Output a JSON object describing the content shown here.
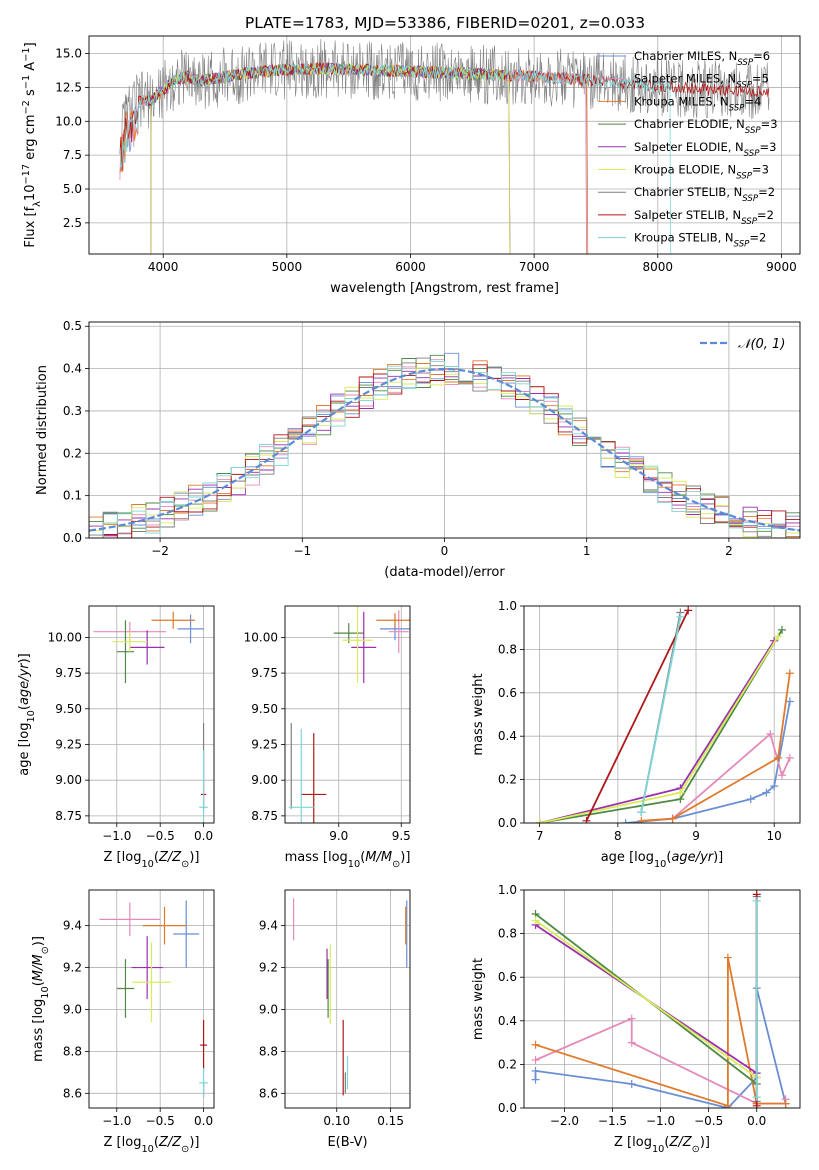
{
  "title": "PLATE=1783, MJD=53386, FIBERID=0201, z=0.033",
  "colors": [
    "#6a8fd4",
    "#e48ab8",
    "#e07a2c",
    "#4f8a45",
    "#9b2fae",
    "#d9eb5a",
    "#7f7f7f",
    "#b01818",
    "#7fd6d6"
  ],
  "chart_data": [
    {
      "id": "spectrum",
      "type": "line",
      "title": "PLATE=1783, MJD=53386, FIBERID=0201, z=0.033",
      "xlabel": "wavelength [Angstrom, rest frame]",
      "ylabel": "Flux [f_λ 10^-17 erg cm^-2 s^-1 A^-1]",
      "xlim": [
        3400,
        9150
      ],
      "ylim": [
        0.2,
        16.3
      ],
      "xticks": [
        4000,
        5000,
        6000,
        7000,
        8000,
        9000
      ],
      "yticks": [
        2.5,
        5.0,
        7.5,
        10.0,
        12.5,
        15.0
      ],
      "xtick_labels": [
        "4000",
        "5000",
        "6000",
        "7000",
        "8000",
        "9000"
      ],
      "ytick_labels": [
        "2.5",
        "5.0",
        "7.5",
        "10.0",
        "12.5",
        "15.0"
      ],
      "legend_position": "top-right",
      "legend": [
        {
          "model": "Chabrier MILES",
          "n_ssp": "6"
        },
        {
          "model": "Salpeter MILES",
          "n_ssp": "5"
        },
        {
          "model": "Kroupa MILES",
          "n_ssp": "4"
        },
        {
          "model": "Chabrier ELODIE",
          "n_ssp": "3"
        },
        {
          "model": "Salpeter ELODIE",
          "n_ssp": "3"
        },
        {
          "model": "Kroupa ELODIE",
          "n_ssp": "3"
        },
        {
          "model": "Chabrier STELIB",
          "n_ssp": "2"
        },
        {
          "model": "Salpeter STELIB",
          "n_ssp": "2"
        },
        {
          "model": "Kroupa STELIB",
          "n_ssp": "2"
        }
      ],
      "continuum": {
        "x": [
          3650,
          3700,
          3800,
          3900,
          4000,
          4100,
          4200,
          4300,
          4500,
          4700,
          5000,
          5300,
          5600,
          6000,
          6500,
          7000,
          7500,
          8000,
          8500,
          8900
        ],
        "y": [
          8.5,
          10.5,
          11.5,
          11.5,
          12.3,
          13.1,
          13.3,
          13.0,
          13.3,
          13.6,
          13.8,
          13.9,
          13.8,
          13.7,
          13.5,
          13.3,
          13.0,
          12.6,
          12.3,
          12.2
        ]
      }
    },
    {
      "id": "residuals",
      "type": "histogram",
      "xlabel": "(data-model)/error",
      "ylabel": "Normed distribution",
      "xlim": [
        -2.5,
        2.5
      ],
      "ylim": [
        0,
        0.51
      ],
      "xticks": [
        -2,
        -1,
        0,
        1,
        2
      ],
      "xtick_labels": [
        "−2",
        "−1",
        "0",
        "1",
        "2"
      ],
      "yticks": [
        0.0,
        0.1,
        0.2,
        0.3,
        0.4,
        0.5
      ],
      "ytick_labels": [
        "0.0",
        "0.1",
        "0.2",
        "0.3",
        "0.4",
        "0.5"
      ],
      "bin_width": 0.1,
      "reference_label": "𝒩(0, 1)",
      "legend_position": "top-right"
    },
    {
      "id": "age-vs-z",
      "type": "scatter",
      "xlabel": "Z [log10(Z/Z⊙)]",
      "ylabel": "age  [log10(age/yr)]",
      "xlim": [
        -1.32,
        0.12
      ],
      "ylim": [
        8.7,
        10.22
      ],
      "xticks": [
        -1.0,
        -0.5,
        0.0
      ],
      "xtick_labels": [
        "−1.0",
        "−0.5",
        "0.0"
      ],
      "yticks": [
        8.75,
        9.0,
        9.25,
        9.5,
        9.75,
        10.0
      ],
      "ytick_labels": [
        "8.75",
        "9.00",
        "9.25",
        "9.50",
        "9.75",
        "10.00"
      ],
      "points": [
        {
          "series": 0,
          "x": -0.15,
          "y": 10.06,
          "xerr": 0.15,
          "yerr": 0.1
        },
        {
          "series": 1,
          "x": -0.85,
          "y": 10.04,
          "xerr": 0.42,
          "yerr": 0.07
        },
        {
          "series": 2,
          "x": -0.35,
          "y": 10.12,
          "xerr": 0.25,
          "yerr": 0.06
        },
        {
          "series": 3,
          "x": -0.9,
          "y": 9.9,
          "xerr": 0.1,
          "yerr": 0.22
        },
        {
          "series": 4,
          "x": -0.65,
          "y": 9.93,
          "xerr": 0.2,
          "yerr": 0.12
        },
        {
          "series": 5,
          "x": -0.85,
          "y": 9.97,
          "xerr": 0.2,
          "yerr": 0.07
        },
        {
          "series": 6,
          "x": 0.0,
          "y": 9.2,
          "xerr": 0.0,
          "yerr": 0.2
        },
        {
          "series": 7,
          "x": 0.0,
          "y": 8.9,
          "xerr": 0.03,
          "yerr": 0.1
        },
        {
          "series": 8,
          "x": 0.0,
          "y": 8.81,
          "xerr": 0.05,
          "yerr": 0.4
        }
      ]
    },
    {
      "id": "age-vs-mass",
      "type": "scatter",
      "xlabel": "mass [log10(M/M⊙)]",
      "xlim": [
        8.57,
        9.57
      ],
      "ylim": [
        8.7,
        10.22
      ],
      "xticks": [
        9.0,
        9.5
      ],
      "xtick_labels": [
        "9.0",
        "9.5"
      ],
      "yticks": [
        8.75,
        9.0,
        9.25,
        9.5,
        9.75,
        10.0
      ],
      "ytick_labels": [
        "8.75",
        "9.00",
        "9.25",
        "9.50",
        "9.75",
        "10.00"
      ],
      "points": [
        {
          "series": 0,
          "x": 9.45,
          "y": 10.06,
          "xerr": 0.12,
          "yerr": 0.08
        },
        {
          "series": 1,
          "x": 9.48,
          "y": 10.04,
          "xerr": 0.08,
          "yerr": 0.15
        },
        {
          "series": 2,
          "x": 9.45,
          "y": 10.12,
          "xerr": 0.15,
          "yerr": 0.05
        },
        {
          "series": 3,
          "x": 9.08,
          "y": 10.03,
          "xerr": 0.12,
          "yerr": 0.07
        },
        {
          "series": 4,
          "x": 9.2,
          "y": 9.93,
          "xerr": 0.1,
          "yerr": 0.25
        },
        {
          "series": 5,
          "x": 9.15,
          "y": 9.98,
          "xerr": 0.12,
          "yerr": 0.3
        },
        {
          "series": 6,
          "x": 8.62,
          "y": 9.1,
          "xerr": 0.0,
          "yerr": 0.3
        },
        {
          "series": 7,
          "x": 8.8,
          "y": 8.9,
          "xerr": 0.1,
          "yerr": 0.43
        },
        {
          "series": 8,
          "x": 8.7,
          "y": 8.81,
          "xerr": 0.1,
          "yerr": 0.55
        }
      ]
    },
    {
      "id": "weight-vs-age",
      "type": "line",
      "xlabel": "age  [log10(age/yr)]",
      "ylabel": "mass weight",
      "xlim": [
        6.8,
        10.33
      ],
      "ylim": [
        0,
        1.0
      ],
      "xticks": [
        7,
        8,
        9,
        10
      ],
      "xtick_labels": [
        "7",
        "8",
        "9",
        "10"
      ],
      "yticks": [
        0.0,
        0.2,
        0.4,
        0.6,
        0.8,
        1.0
      ],
      "ytick_labels": [
        "0.0",
        "0.2",
        "0.4",
        "0.6",
        "0.8",
        "1.0"
      ],
      "series": [
        {
          "series": 0,
          "x": [
            8.1,
            8.7,
            9.7,
            9.9,
            10.0,
            10.2
          ],
          "y": [
            0.0,
            0.02,
            0.11,
            0.14,
            0.17,
            0.56
          ]
        },
        {
          "series": 1,
          "x": [
            8.7,
            9.95,
            10.1,
            10.2
          ],
          "y": [
            0.02,
            0.41,
            0.22,
            0.3
          ]
        },
        {
          "series": 2,
          "x": [
            8.3,
            8.7,
            10.05,
            10.2
          ],
          "y": [
            0.01,
            0.02,
            0.3,
            0.69
          ]
        },
        {
          "series": 3,
          "x": [
            7.0,
            8.8,
            10.1
          ],
          "y": [
            0.0,
            0.11,
            0.89
          ]
        },
        {
          "series": 4,
          "x": [
            7.0,
            8.8,
            10.0
          ],
          "y": [
            0.0,
            0.16,
            0.84
          ]
        },
        {
          "series": 5,
          "x": [
            7.0,
            8.8,
            10.05
          ],
          "y": [
            0.0,
            0.14,
            0.86
          ]
        },
        {
          "series": 6,
          "x": [
            8.3,
            8.8
          ],
          "y": [
            0.05,
            0.97
          ]
        },
        {
          "series": 7,
          "x": [
            7.6,
            8.9
          ],
          "y": [
            0.01,
            0.98
          ]
        },
        {
          "series": 8,
          "x": [
            8.3,
            8.8
          ],
          "y": [
            0.05,
            0.95
          ]
        }
      ]
    },
    {
      "id": "mass-vs-z",
      "type": "scatter",
      "xlabel": "Z [log10(Z/Z⊙)]",
      "ylabel": "mass [log10(M/M⊙)]",
      "xlim": [
        -1.32,
        0.12
      ],
      "ylim": [
        8.53,
        9.57
      ],
      "xticks": [
        -1.0,
        -0.5,
        0.0
      ],
      "xtick_labels": [
        "−1.0",
        "−0.5",
        "0.0"
      ],
      "yticks": [
        8.6,
        8.8,
        9.0,
        9.2,
        9.4
      ],
      "ytick_labels": [
        "8.6",
        "8.8",
        "9.0",
        "9.2",
        "9.4"
      ],
      "points": [
        {
          "series": 0,
          "x": -0.2,
          "y": 9.36,
          "xerr": 0.15,
          "yerr": 0.16
        },
        {
          "series": 1,
          "x": -0.85,
          "y": 9.43,
          "xerr": 0.35,
          "yerr": 0.08
        },
        {
          "series": 2,
          "x": -0.45,
          "y": 9.4,
          "xerr": 0.25,
          "yerr": 0.09
        },
        {
          "series": 3,
          "x": -0.9,
          "y": 9.1,
          "xerr": 0.1,
          "yerr": 0.14
        },
        {
          "series": 4,
          "x": -0.65,
          "y": 9.2,
          "xerr": 0.18,
          "yerr": 0.15
        },
        {
          "series": 5,
          "x": -0.6,
          "y": 9.13,
          "xerr": 0.22,
          "yerr": 0.19
        },
        {
          "series": 6,
          "x": 0.0,
          "y": 8.62,
          "xerr": 0.0,
          "yerr": 0.04
        },
        {
          "series": 7,
          "x": 0.0,
          "y": 8.83,
          "xerr": 0.04,
          "yerr": 0.12
        },
        {
          "series": 8,
          "x": 0.0,
          "y": 8.65,
          "xerr": 0.05,
          "yerr": 0.07
        }
      ]
    },
    {
      "id": "mass-vs-ebv",
      "type": "scatter",
      "xlabel": "E(B-V)",
      "xlim": [
        0.052,
        0.168
      ],
      "ylim": [
        8.53,
        9.57
      ],
      "xticks": [
        0.1,
        0.15
      ],
      "xtick_labels": [
        "0.10",
        "0.15"
      ],
      "yticks": [
        8.6,
        8.8,
        9.0,
        9.2,
        9.4
      ],
      "ytick_labels": [
        "8.6",
        "8.8",
        "9.0",
        "9.2",
        "9.4"
      ],
      "points": [
        {
          "series": 0,
          "x": 0.165,
          "y": 9.36,
          "xerr": 0,
          "yerr": 0.16
        },
        {
          "series": 1,
          "x": 0.06,
          "y": 9.43,
          "xerr": 0,
          "yerr": 0.1
        },
        {
          "series": 2,
          "x": 0.164,
          "y": 9.4,
          "xerr": 0,
          "yerr": 0.09
        },
        {
          "series": 3,
          "x": 0.092,
          "y": 9.1,
          "xerr": 0,
          "yerr": 0.14
        },
        {
          "series": 4,
          "x": 0.091,
          "y": 9.17,
          "xerr": 0,
          "yerr": 0.12
        },
        {
          "series": 5,
          "x": 0.094,
          "y": 9.12,
          "xerr": 0,
          "yerr": 0.19
        },
        {
          "series": 6,
          "x": 0.108,
          "y": 8.65,
          "xerr": 0,
          "yerr": 0.05
        },
        {
          "series": 7,
          "x": 0.106,
          "y": 8.77,
          "xerr": 0,
          "yerr": 0.18
        },
        {
          "series": 8,
          "x": 0.11,
          "y": 8.7,
          "xerr": 0,
          "yerr": 0.08
        }
      ]
    },
    {
      "id": "weight-vs-z",
      "type": "line",
      "xlabel": "Z [log10(Z/Z⊙)]",
      "ylabel": "mass weight",
      "xlim": [
        -2.42,
        0.45
      ],
      "ylim": [
        0,
        1.0
      ],
      "xticks": [
        -2.0,
        -1.5,
        -1.0,
        -0.5,
        0.0
      ],
      "xtick_labels": [
        "−2.0",
        "−1.5",
        "−1.0",
        "−0.5",
        "0.0"
      ],
      "yticks": [
        0.0,
        0.2,
        0.4,
        0.6,
        0.8,
        1.0
      ],
      "ytick_labels": [
        "0.0",
        "0.2",
        "0.4",
        "0.6",
        "0.8",
        "1.0"
      ],
      "series": [
        {
          "series": 0,
          "x": [
            -2.3,
            -2.3,
            -1.3,
            -0.3,
            0.0,
            0.0,
            0.3
          ],
          "y": [
            0.13,
            0.17,
            0.11,
            0.0,
            0.14,
            0.55,
            0.02
          ]
        },
        {
          "series": 1,
          "x": [
            -2.3,
            -1.3,
            -1.3,
            0.0,
            0.3,
            0.3
          ],
          "y": [
            0.22,
            0.41,
            0.3,
            0.02,
            0.02,
            0.04
          ]
        },
        {
          "series": 2,
          "x": [
            -2.3,
            -0.3,
            -0.3,
            0.0,
            0.3
          ],
          "y": [
            0.29,
            0.01,
            0.69,
            0.02,
            0.02
          ]
        },
        {
          "series": 3,
          "x": [
            -2.3,
            0.0
          ],
          "y": [
            0.89,
            0.11
          ]
        },
        {
          "series": 4,
          "x": [
            -2.3,
            0.0
          ],
          "y": [
            0.84,
            0.16
          ]
        },
        {
          "series": 5,
          "x": [
            -2.3,
            0.0
          ],
          "y": [
            0.86,
            0.14
          ]
        },
        {
          "series": 6,
          "x": [
            0.0,
            0.0
          ],
          "y": [
            0.03,
            0.97
          ]
        },
        {
          "series": 7,
          "x": [
            0.0,
            0.0
          ],
          "y": [
            0.01,
            0.98
          ]
        },
        {
          "series": 8,
          "x": [
            0.0,
            0.0
          ],
          "y": [
            0.05,
            0.95
          ]
        }
      ]
    }
  ]
}
